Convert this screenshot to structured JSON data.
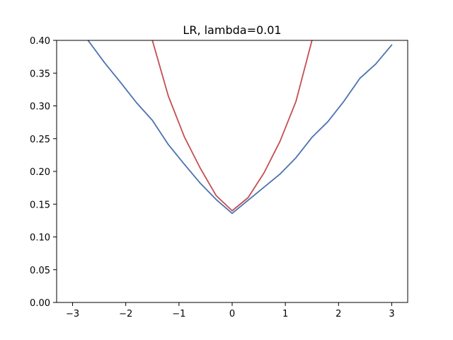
{
  "chart_data": {
    "type": "line",
    "title": "LR, lambda=0.01",
    "xlabel": "",
    "ylabel": "",
    "xlim": [
      -3.3,
      3.3
    ],
    "ylim": [
      0.0,
      0.4
    ],
    "xticks": [
      -3,
      -2,
      -1,
      0,
      1,
      2,
      3
    ],
    "xtick_labels": [
      "−3",
      "−2",
      "−1",
      "0",
      "1",
      "2",
      "3"
    ],
    "yticks": [
      0.0,
      0.05,
      0.1,
      0.15,
      0.2,
      0.25,
      0.3,
      0.35,
      0.4
    ],
    "ytick_labels": [
      "0.00",
      "0.05",
      "0.10",
      "0.15",
      "0.20",
      "0.25",
      "0.30",
      "0.35",
      "0.40"
    ],
    "grid": false,
    "legend": "none",
    "series": [
      {
        "color": "#4c72b0",
        "x": [
          -3.0,
          -2.7,
          -2.4,
          -2.1,
          -1.8,
          -1.5,
          -1.2,
          -0.9,
          -0.6,
          -0.3,
          0.0,
          0.3,
          0.6,
          0.9,
          1.2,
          1.5,
          1.8,
          2.1,
          2.4,
          2.7,
          3.0
        ],
        "y": [
          0.431,
          0.399,
          0.366,
          0.336,
          0.305,
          0.278,
          0.241,
          0.211,
          0.182,
          0.157,
          0.136,
          0.156,
          0.176,
          0.196,
          0.221,
          0.252,
          0.276,
          0.307,
          0.342,
          0.364,
          0.393
        ]
      },
      {
        "color": "#c44e52",
        "x": [
          -1.8,
          -1.5,
          -1.2,
          -0.9,
          -0.6,
          -0.3,
          0.0,
          0.3,
          0.6,
          0.9,
          1.2,
          1.5,
          1.8
        ],
        "y": [
          0.52,
          0.4,
          0.315,
          0.253,
          0.205,
          0.163,
          0.14,
          0.16,
          0.198,
          0.246,
          0.307,
          0.4,
          0.52
        ]
      }
    ]
  }
}
